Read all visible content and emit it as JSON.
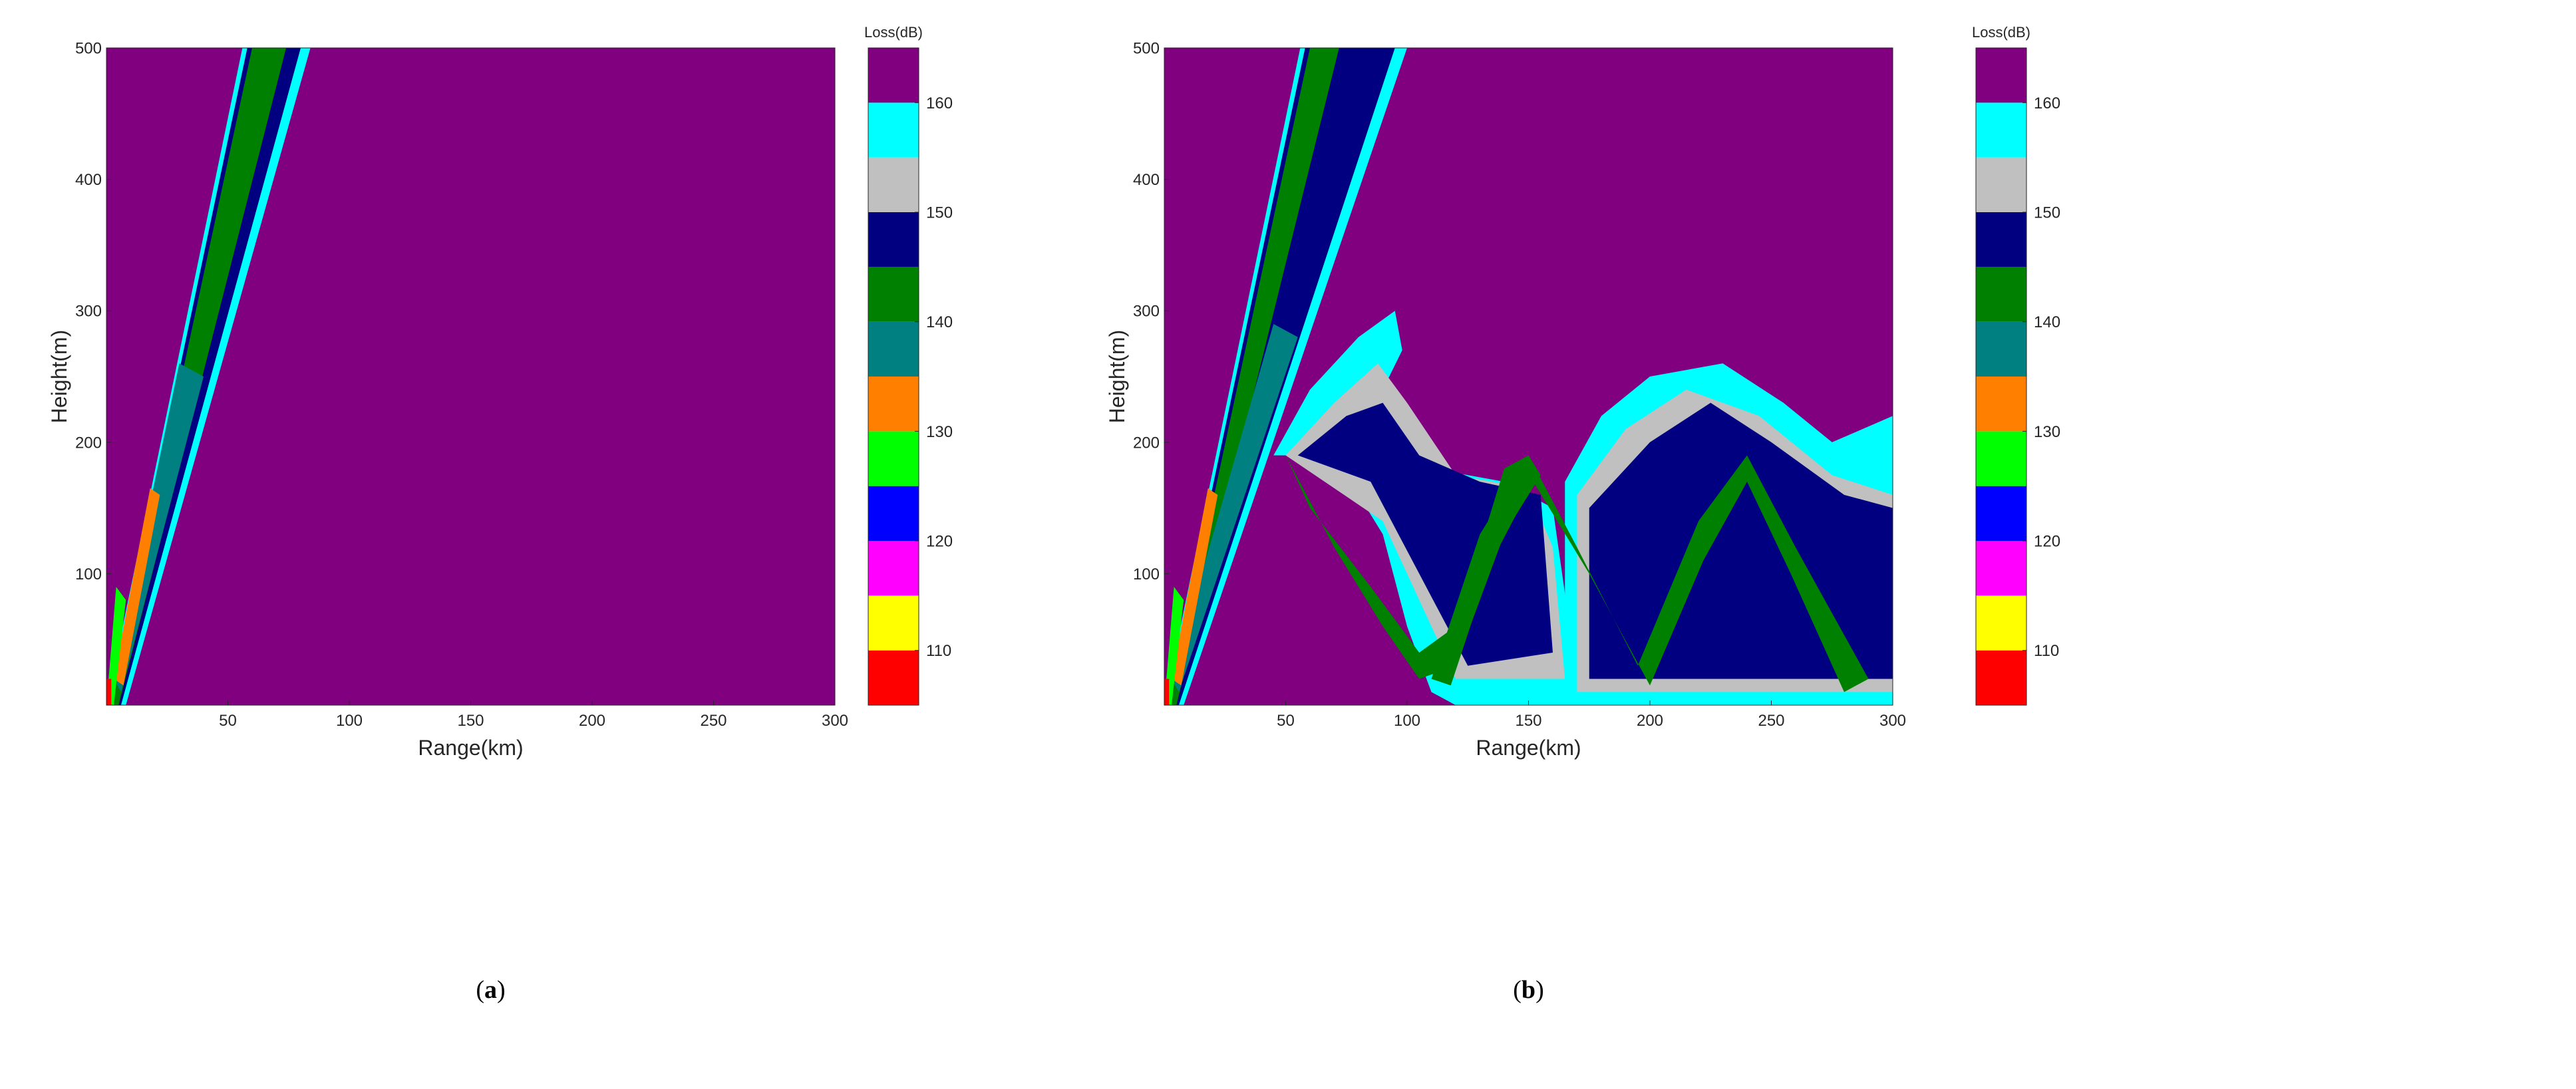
{
  "chart_data": [
    {
      "type": "heatmap",
      "panel_label": "a",
      "xlabel": "Range(km)",
      "ylabel": "Height(m)",
      "xlim": [
        0,
        300
      ],
      "ylim": [
        0,
        500
      ],
      "xticks": [
        50,
        100,
        150,
        200,
        250,
        300
      ],
      "yticks": [
        100,
        200,
        300,
        400,
        500
      ],
      "colorbar": {
        "title": "Loss(dB)",
        "range": [
          105,
          165
        ],
        "ticks": [
          110,
          120,
          130,
          140,
          150,
          160
        ],
        "levels": [
          {
            "from": 105,
            "to": 110,
            "color": "#ff0000"
          },
          {
            "from": 110,
            "to": 115,
            "color": "#ffff00"
          },
          {
            "from": 115,
            "to": 120,
            "color": "#ff00ff"
          },
          {
            "from": 120,
            "to": 125,
            "color": "#0000ff"
          },
          {
            "from": 125,
            "to": 130,
            "color": "#00ff00"
          },
          {
            "from": 130,
            "to": 135,
            "color": "#ff8000"
          },
          {
            "from": 135,
            "to": 140,
            "color": "#008080"
          },
          {
            "from": 140,
            "to": 145,
            "color": "#008000"
          },
          {
            "from": 145,
            "to": 150,
            "color": "#000080"
          },
          {
            "from": 150,
            "to": 155,
            "color": "#c0c0c0"
          },
          {
            "from": 155,
            "to": 160,
            "color": "#00ffff"
          },
          {
            "from": 160,
            "to": 165,
            "color": "#800080"
          }
        ]
      },
      "background_level_color": "#800080",
      "regions": [
        {
          "color": "#00ffff",
          "outline": [
            [
              0,
              0
            ],
            [
              8,
              0
            ],
            [
              84,
              500
            ],
            [
              56,
              500
            ]
          ]
        },
        {
          "color": "#000080",
          "outline": [
            [
              1,
              0
            ],
            [
              6,
              0
            ],
            [
              80,
              500
            ],
            [
              58,
              500
            ]
          ]
        },
        {
          "color": "#008000",
          "outline": [
            [
              2,
              0
            ],
            [
              5,
              0
            ],
            [
              74,
              500
            ],
            [
              60,
              500
            ]
          ]
        },
        {
          "color": "#008080",
          "outline": [
            [
              3,
              20
            ],
            [
              6,
              10
            ],
            [
              40,
              250
            ],
            [
              30,
              260
            ]
          ]
        },
        {
          "color": "#ff8000",
          "outline": [
            [
              3,
              20
            ],
            [
              7,
              15
            ],
            [
              22,
              160
            ],
            [
              18,
              165
            ]
          ]
        },
        {
          "color": "#00ff00",
          "outline": [
            [
              0,
              0
            ],
            [
              3,
              0
            ],
            [
              8,
              80
            ],
            [
              4,
              90
            ]
          ]
        },
        {
          "color": "#ff0000",
          "outline": [
            [
              0,
              0
            ],
            [
              2,
              0
            ],
            [
              2,
              20
            ],
            [
              0,
              20
            ]
          ]
        }
      ]
    },
    {
      "type": "heatmap",
      "panel_label": "b",
      "xlabel": "Range(km)",
      "ylabel": "Height(m)",
      "xlim": [
        0,
        300
      ],
      "ylim": [
        0,
        500
      ],
      "xticks": [
        50,
        100,
        150,
        200,
        250,
        300
      ],
      "yticks": [
        100,
        200,
        300,
        400,
        500
      ],
      "colorbar": {
        "title": "Loss(dB)",
        "range": [
          105,
          165
        ],
        "ticks": [
          110,
          120,
          130,
          140,
          150,
          160
        ],
        "levels": [
          {
            "from": 105,
            "to": 110,
            "color": "#ff0000"
          },
          {
            "from": 110,
            "to": 115,
            "color": "#ffff00"
          },
          {
            "from": 115,
            "to": 120,
            "color": "#ff00ff"
          },
          {
            "from": 120,
            "to": 125,
            "color": "#0000ff"
          },
          {
            "from": 125,
            "to": 130,
            "color": "#00ff00"
          },
          {
            "from": 130,
            "to": 135,
            "color": "#ff8000"
          },
          {
            "from": 135,
            "to": 140,
            "color": "#008080"
          },
          {
            "from": 140,
            "to": 145,
            "color": "#008000"
          },
          {
            "from": 145,
            "to": 150,
            "color": "#000080"
          },
          {
            "from": 150,
            "to": 155,
            "color": "#c0c0c0"
          },
          {
            "from": 155,
            "to": 160,
            "color": "#00ffff"
          },
          {
            "from": 160,
            "to": 165,
            "color": "#800080"
          }
        ]
      },
      "background_level_color": "#800080",
      "regions": [
        {
          "color": "#00ffff",
          "outline": [
            [
              0,
              0
            ],
            [
              8,
              0
            ],
            [
              100,
              500
            ],
            [
              56,
              500
            ]
          ]
        },
        {
          "color": "#000080",
          "outline": [
            [
              1,
              0
            ],
            [
              6,
              0
            ],
            [
              95,
              500
            ],
            [
              58,
              500
            ]
          ]
        },
        {
          "color": "#008000",
          "outline": [
            [
              2,
              0
            ],
            [
              5,
              0
            ],
            [
              72,
              500
            ],
            [
              60,
              500
            ]
          ]
        },
        {
          "color": "#00ffff",
          "outline": [
            [
              45,
              190
            ],
            [
              60,
              240
            ],
            [
              80,
              280
            ],
            [
              95,
              300
            ],
            [
              98,
              270
            ],
            [
              90,
              240
            ],
            [
              110,
              180
            ],
            [
              140,
              170
            ],
            [
              160,
              150
            ],
            [
              170,
              20
            ],
            [
              165,
              0
            ],
            [
              120,
              0
            ],
            [
              110,
              10
            ],
            [
              100,
              60
            ],
            [
              90,
              130
            ],
            [
              70,
              190
            ]
          ]
        },
        {
          "color": "#c0c0c0",
          "outline": [
            [
              50,
              190
            ],
            [
              70,
              230
            ],
            [
              88,
              260
            ],
            [
              100,
              230
            ],
            [
              120,
              175
            ],
            [
              150,
              165
            ],
            [
              160,
              120
            ],
            [
              165,
              20
            ],
            [
              120,
              20
            ],
            [
              105,
              80
            ],
            [
              90,
              140
            ]
          ]
        },
        {
          "color": "#000080",
          "outline": [
            [
              55,
              190
            ],
            [
              75,
              220
            ],
            [
              90,
              230
            ],
            [
              105,
              190
            ],
            [
              130,
              170
            ],
            [
              155,
              160
            ],
            [
              160,
              40
            ],
            [
              125,
              30
            ],
            [
              105,
              100
            ],
            [
              85,
              170
            ]
          ]
        },
        {
          "color": "#00ffff",
          "outline": [
            [
              165,
              170
            ],
            [
              180,
              220
            ],
            [
              200,
              250
            ],
            [
              230,
              260
            ],
            [
              255,
              230
            ],
            [
              275,
              200
            ],
            [
              300,
              220
            ],
            [
              300,
              0
            ],
            [
              165,
              0
            ]
          ]
        },
        {
          "color": "#c0c0c0",
          "outline": [
            [
              170,
              160
            ],
            [
              190,
              210
            ],
            [
              215,
              240
            ],
            [
              245,
              220
            ],
            [
              275,
              175
            ],
            [
              300,
              160
            ],
            [
              300,
              10
            ],
            [
              170,
              10
            ]
          ]
        },
        {
          "color": "#000080",
          "outline": [
            [
              175,
              150
            ],
            [
              200,
              200
            ],
            [
              225,
              230
            ],
            [
              250,
              200
            ],
            [
              280,
              160
            ],
            [
              300,
              150
            ],
            [
              300,
              20
            ],
            [
              175,
              20
            ]
          ]
        },
        {
          "color": "#008000",
          "outline": [
            [
              60,
              150
            ],
            [
              85,
              90
            ],
            [
              105,
              40
            ],
            [
              120,
              60
            ],
            [
              140,
              180
            ],
            [
              150,
              190
            ],
            [
              155,
              175
            ],
            [
              140,
              130
            ],
            [
              120,
              30
            ],
            [
              105,
              20
            ],
            [
              90,
              60
            ],
            [
              70,
              120
            ],
            [
              50,
              190
            ]
          ]
        },
        {
          "color": "#008000",
          "outline": [
            [
              110,
              20
            ],
            [
              130,
              130
            ],
            [
              150,
              190
            ],
            [
              170,
              120
            ],
            [
              195,
              30
            ],
            [
              220,
              140
            ],
            [
              240,
              190
            ],
            [
              260,
              120
            ],
            [
              290,
              20
            ],
            [
              280,
              10
            ],
            [
              258,
              100
            ],
            [
              240,
              170
            ],
            [
              222,
              110
            ],
            [
              200,
              15
            ],
            [
              175,
              100
            ],
            [
              152,
              170
            ],
            [
              135,
              110
            ],
            [
              118,
              15
            ]
          ]
        },
        {
          "color": "#008080",
          "outline": [
            [
              3,
              20
            ],
            [
              6,
              10
            ],
            [
              55,
              280
            ],
            [
              45,
              290
            ]
          ]
        },
        {
          "color": "#ff8000",
          "outline": [
            [
              3,
              20
            ],
            [
              7,
              15
            ],
            [
              22,
              160
            ],
            [
              18,
              165
            ]
          ]
        },
        {
          "color": "#00ff00",
          "outline": [
            [
              0,
              0
            ],
            [
              3,
              0
            ],
            [
              8,
              80
            ],
            [
              4,
              90
            ]
          ]
        },
        {
          "color": "#ff0000",
          "outline": [
            [
              0,
              0
            ],
            [
              2,
              0
            ],
            [
              2,
              20
            ],
            [
              0,
              20
            ]
          ]
        }
      ]
    }
  ]
}
